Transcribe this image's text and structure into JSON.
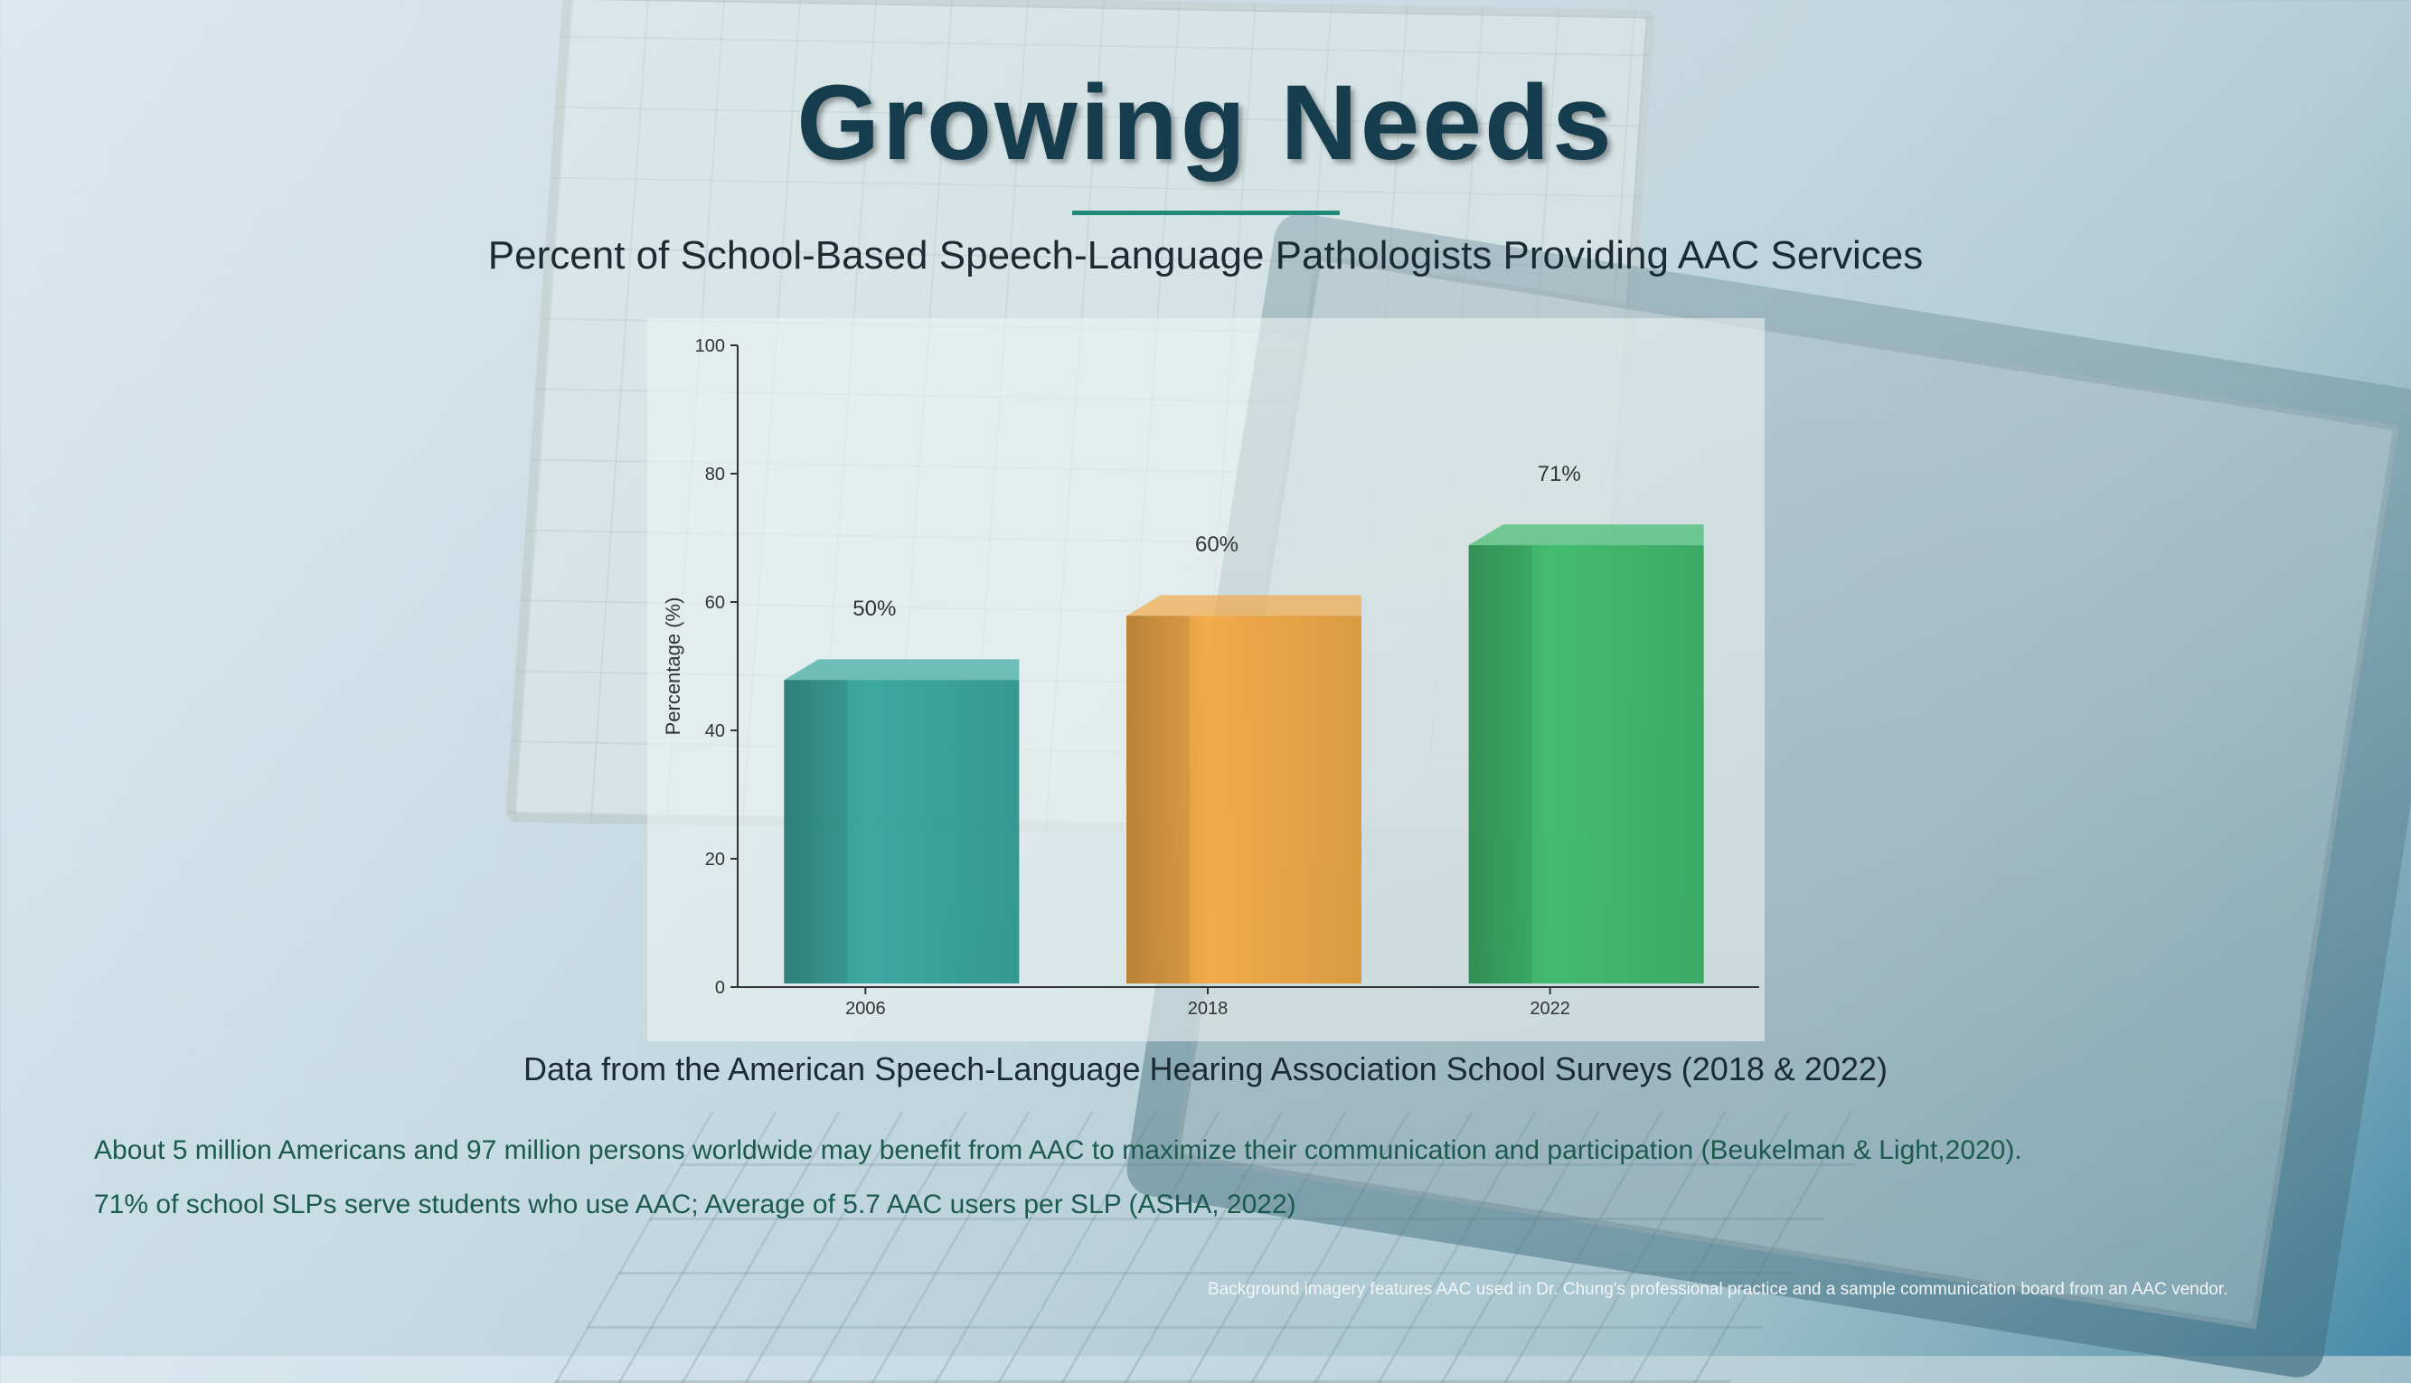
{
  "slide": {
    "title": "Growing Needs",
    "subtitle": "Percent of School-Based Speech-Language Pathologists Providing AAC Services",
    "source": "Data from the American Speech-Language Hearing Association School Surveys (2018 & 2022)",
    "notes": [
      "About 5 million Americans and 97 million persons worldwide may benefit from AAC to maximize their communication and participation (Beukelman & Light,2020).",
      "71% of school SLPs serve students who use AAC; Average of 5.7 AAC users per SLP (ASHA, 2022)"
    ],
    "credit": "Background imagery features AAC used in Dr. Chung's professional practice and a sample communication board from an AAC vendor."
  },
  "chart_data": {
    "type": "bar",
    "categories": [
      "2006",
      "2018",
      "2022"
    ],
    "values": [
      50,
      60,
      71
    ],
    "data_labels": [
      "50%",
      "60%",
      "71%"
    ],
    "colors": [
      "#2fa39a",
      "#f5a63c",
      "#36b866"
    ],
    "title": "",
    "xlabel": "",
    "ylabel": "Percentage (%)",
    "ylim": [
      0,
      100
    ],
    "yticks": [
      "0",
      "20",
      "40",
      "60",
      "80",
      "100"
    ],
    "grid": false
  }
}
